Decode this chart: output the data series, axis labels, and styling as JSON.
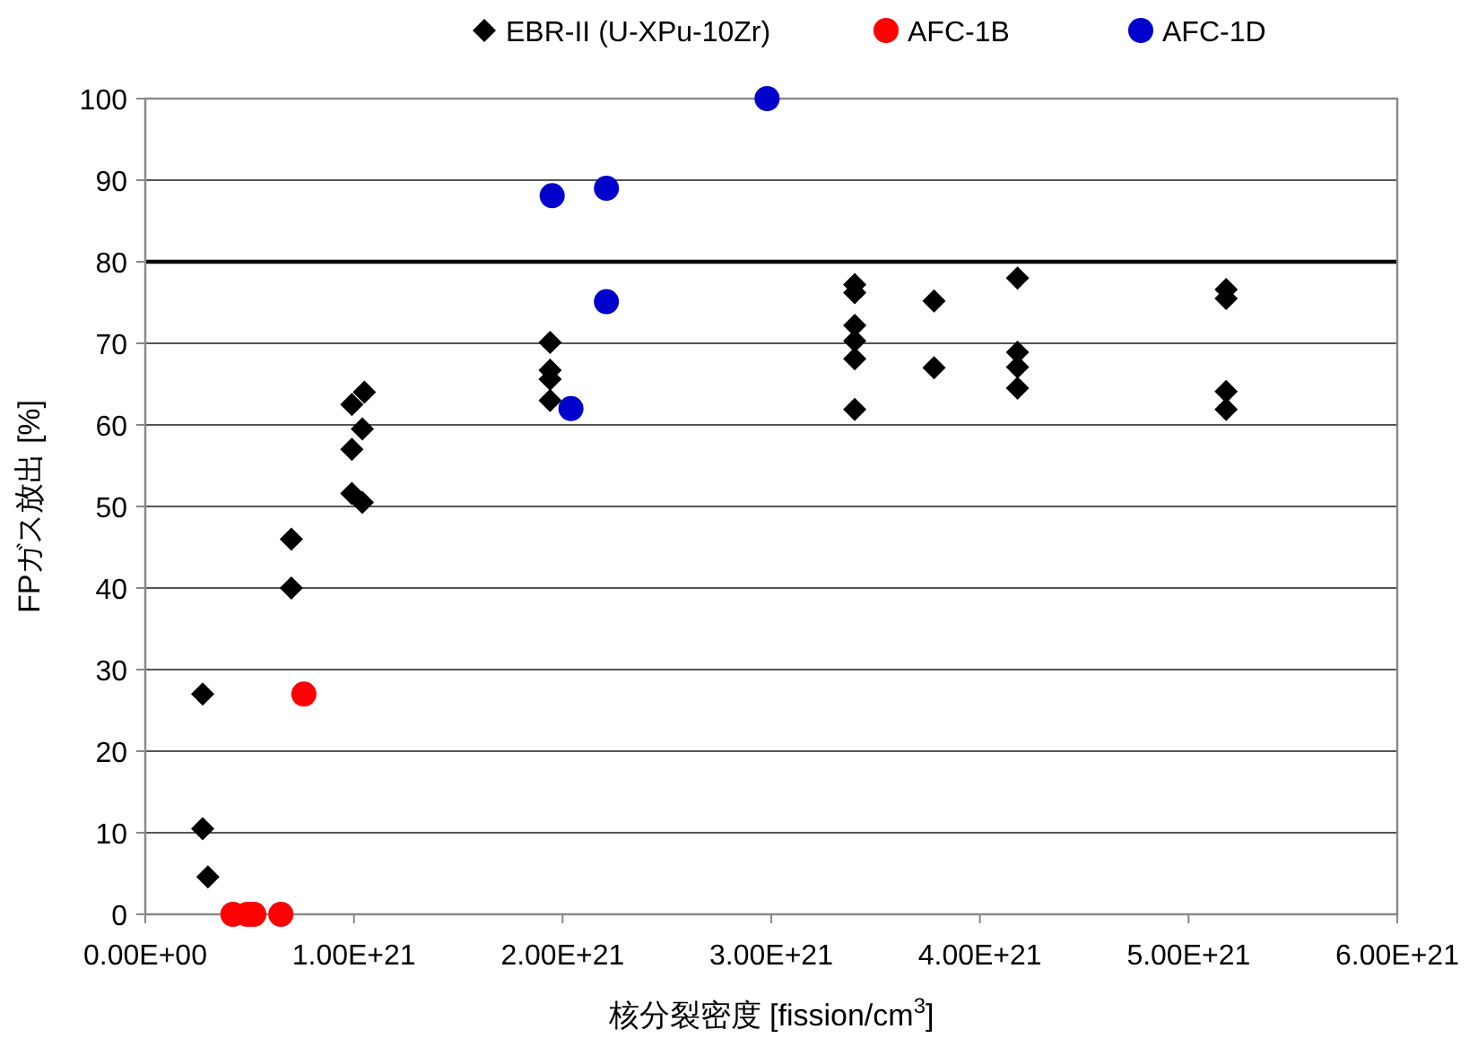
{
  "chart_data": {
    "type": "scatter",
    "xlabel": "核分裂密度 [fission/cm$^{3}$]",
    "ylabel": "FPガス放出 [%]",
    "xlim": [
      0,
      6e+21
    ],
    "xticks": [
      {
        "value": 0,
        "label": "0.00E+00"
      },
      {
        "value": 1e+21,
        "label": "1.00E+21"
      },
      {
        "value": 2e+21,
        "label": "2.00E+21"
      },
      {
        "value": 3e+21,
        "label": "3.00E+21"
      },
      {
        "value": 4e+21,
        "label": "4.00E+21"
      },
      {
        "value": 5e+21,
        "label": "5.00E+21"
      },
      {
        "value": 6e+21,
        "label": "6.00E+21"
      }
    ],
    "ylim": [
      0,
      100
    ],
    "yticks": [
      0,
      10,
      20,
      30,
      40,
      50,
      60,
      70,
      80,
      90,
      100
    ],
    "grid": "y",
    "legend": "top",
    "ref_lines": [
      {
        "axis": "y",
        "value": 80,
        "color": "#000000"
      }
    ],
    "series": [
      {
        "name": "EBR-II (U-XPu-10Zr)",
        "color": "#000000",
        "marker": "diamond",
        "x": [
          2.75e+20,
          2.75e+20,
          3e+20,
          7e+20,
          7e+20,
          9.9e+20,
          9.9e+20,
          1.04e+21,
          1.04e+21,
          9.9e+20,
          1.05e+21,
          1.94e+21,
          1.94e+21,
          1.94e+21,
          1.94e+21,
          3.4e+21,
          3.4e+21,
          3.4e+21,
          3.4e+21,
          3.4e+21,
          3.4e+21,
          3.78e+21,
          3.78e+21,
          4.18e+21,
          4.18e+21,
          4.18e+21,
          4.18e+21,
          5.18e+21,
          5.18e+21,
          5.18e+21,
          5.18e+21
        ],
        "values": [
          27,
          10.5,
          4.6,
          46,
          40,
          57,
          51.6,
          50.5,
          59.5,
          62.5,
          64,
          70.1,
          66.7,
          65.6,
          63,
          77.2,
          76.2,
          72.2,
          70.3,
          68.1,
          61.9,
          75.2,
          67,
          78,
          68.9,
          67.1,
          64.5,
          76.6,
          75.5,
          64.1,
          61.9
        ]
      },
      {
        "name": "AFC-1B",
        "color": "#ff0000",
        "marker": "circle",
        "x": [
          4.2e+20,
          4.9e+20,
          5.2e+20,
          6.5e+20,
          7.6e+20
        ],
        "values": [
          0,
          0,
          0,
          0,
          27
        ]
      },
      {
        "name": "AFC-1D",
        "color": "#0000cc",
        "marker": "circle",
        "x": [
          1.95e+21,
          2.21e+21,
          2.21e+21,
          2.04e+21,
          2.98e+21
        ],
        "values": [
          88.1,
          89,
          75.1,
          62,
          100
        ]
      }
    ]
  }
}
